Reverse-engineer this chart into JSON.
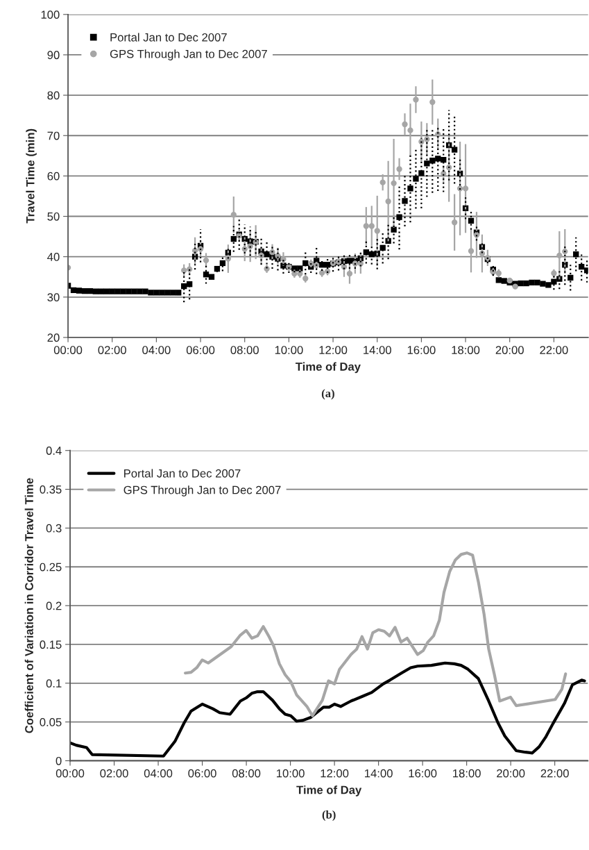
{
  "chart_data": [
    {
      "type": "scatter",
      "xlabel": "Time of Day",
      "ylabel": "Travel Time (min)",
      "annotations": [
        "(a)"
      ],
      "xlim": [
        0,
        23.55
      ],
      "ylim": [
        20,
        100
      ],
      "xticks": [
        {
          "value": 0,
          "label": "00:00"
        },
        {
          "value": 2,
          "label": "02:00"
        },
        {
          "value": 4,
          "label": "04:00"
        },
        {
          "value": 6,
          "label": "06:00"
        },
        {
          "value": 8,
          "label": "08:00"
        },
        {
          "value": 10,
          "label": "10:00"
        },
        {
          "value": 12,
          "label": "12:00"
        },
        {
          "value": 14,
          "label": "14:00"
        },
        {
          "value": 16,
          "label": "16:00"
        },
        {
          "value": 18,
          "label": "18:00"
        },
        {
          "value": 20,
          "label": "20:00"
        },
        {
          "value": 22,
          "label": "22:00"
        }
      ],
      "yticks": [
        20,
        30,
        40,
        50,
        60,
        70,
        80,
        90,
        100
      ],
      "grid": "y",
      "legend": "top left",
      "series": [
        {
          "name": "Portal Jan to Dec 2007",
          "color": "#000000",
          "marker": "square",
          "line_style": "dotted",
          "x": [
            0,
            0.25,
            0.5,
            0.75,
            1,
            1.25,
            1.5,
            1.75,
            2,
            2.25,
            2.5,
            2.75,
            3,
            3.25,
            3.5,
            3.75,
            4,
            4.25,
            4.5,
            4.75,
            5,
            5.25,
            5.5,
            5.75,
            6,
            6.25,
            6.5,
            6.75,
            7,
            7.25,
            7.5,
            7.75,
            8,
            8.25,
            8.5,
            8.75,
            9,
            9.25,
            9.5,
            9.75,
            10,
            10.25,
            10.5,
            10.75,
            11,
            11.25,
            11.5,
            11.75,
            12,
            12.25,
            12.5,
            12.75,
            13,
            13.25,
            13.5,
            13.75,
            14,
            14.25,
            14.5,
            14.75,
            15,
            15.25,
            15.5,
            15.75,
            16,
            16.25,
            16.5,
            16.75,
            17,
            17.25,
            17.5,
            17.75,
            18,
            18.25,
            18.5,
            18.75,
            19,
            19.25,
            19.5,
            19.75,
            20,
            20.25,
            20.5,
            20.75,
            21,
            21.25,
            21.5,
            21.75,
            22,
            22.25,
            22.5,
            22.75,
            23,
            23.25,
            23.5
          ],
          "values": [
            32.8,
            31.7,
            31.6,
            31.5,
            31.5,
            31.4,
            31.4,
            31.4,
            31.4,
            31.4,
            31.4,
            31.4,
            31.4,
            31.4,
            31.4,
            31.1,
            31.1,
            31.1,
            31.1,
            31.1,
            31.1,
            32.7,
            33.2,
            40,
            42.7,
            35.6,
            35,
            37,
            38.4,
            41,
            44.4,
            45.5,
            44.4,
            43.8,
            43.7,
            41.3,
            40.6,
            40,
            39.5,
            37.8,
            37.5,
            37.1,
            37.1,
            38.4,
            37.5,
            39,
            38,
            38,
            38.3,
            38.6,
            38.9,
            39,
            39,
            39.6,
            41.1,
            40.6,
            40.8,
            42.2,
            43.9,
            46.7,
            49.8,
            53.8,
            56.9,
            59.3,
            60.7,
            63.1,
            63.8,
            64.3,
            64,
            67.6,
            66.5,
            60.6,
            52,
            48.9,
            46,
            42.4,
            39.4,
            36.8,
            34.2,
            34,
            33.6,
            33.3,
            33.4,
            33.4,
            33.6,
            33.6,
            33.3,
            33,
            33.8,
            34.5,
            38,
            34.8,
            40.6,
            37.5,
            36.6
          ],
          "errors": [
            null,
            null,
            null,
            null,
            null,
            null,
            null,
            null,
            null,
            null,
            null,
            null,
            null,
            null,
            null,
            null,
            null,
            null,
            null,
            null,
            null,
            4,
            3.8,
            3.2,
            4.1,
            2.3,
            0.5,
            0.8,
            2,
            1.5,
            3.2,
            3.8,
            3.6,
            3.6,
            3,
            3.3,
            3.5,
            3,
            2.9,
            2,
            1.5,
            1,
            1,
            2.8,
            1.5,
            3.3,
            1.5,
            2,
            2,
            2,
            2,
            2,
            2,
            2,
            2.8,
            2.5,
            3.9,
            3.9,
            4.5,
            3.4,
            8,
            6.3,
            8.4,
            7.4,
            8.7,
            8.3,
            8,
            8,
            8,
            8.7,
            8.4,
            4,
            2.7,
            2.2,
            2,
            1.5,
            1,
            1.5,
            null,
            null,
            null,
            null,
            null,
            null,
            null,
            null,
            null,
            null,
            2,
            2.5,
            5,
            3.2,
            4.2,
            3.4,
            3
          ]
        },
        {
          "name": "GPS Through Jan to Dec 2007",
          "color": "#a6a6a6",
          "marker": "circle",
          "line_style": "solid",
          "x": [
            0,
            5.25,
            5.5,
            5.75,
            6,
            6.25,
            7.25,
            7.5,
            7.75,
            8,
            8.25,
            8.5,
            8.75,
            9,
            9.25,
            9.5,
            9.75,
            10,
            10.25,
            10.5,
            10.75,
            11,
            11.25,
            11.5,
            11.75,
            12,
            12.25,
            12.5,
            12.75,
            13,
            13.25,
            13.5,
            13.75,
            14,
            14.25,
            14.5,
            14.75,
            15,
            15.25,
            15.5,
            15.75,
            16,
            16.25,
            16.5,
            16.75,
            17,
            17.25,
            17.5,
            17.75,
            18,
            18.25,
            18.5,
            18.75,
            19,
            19.25,
            19.5,
            20,
            20.25,
            22,
            22.25,
            22.5
          ],
          "values": [
            37.3,
            36.6,
            36.9,
            41.5,
            41.9,
            39.1,
            39.5,
            50.4,
            45.2,
            41.9,
            42.6,
            43.6,
            40.3,
            37,
            41.1,
            40.2,
            39.4,
            37.5,
            35.8,
            35.8,
            34.6,
            38.3,
            37.9,
            36,
            36.4,
            38.4,
            38.7,
            37.5,
            35.8,
            38.3,
            38.3,
            47.6,
            47.6,
            46.4,
            58.4,
            53.7,
            58.2,
            61.7,
            72.8,
            71.3,
            78.9,
            68.5,
            69.1,
            78.3,
            70.3,
            60.6,
            62.1,
            48.5,
            56.9,
            56.9,
            41.4,
            45.4,
            40.8,
            39.7,
            36.2,
            35.9,
            34.1,
            32.6,
            35.9,
            40.3,
            41.3
          ],
          "errors": [
            null,
            1.5,
            1.5,
            3.3,
            2,
            1.8,
            3.5,
            4.5,
            1.5,
            3,
            3.9,
            4.2,
            2,
            1,
            2,
            2,
            1.7,
            1,
            1,
            1,
            1,
            1,
            1,
            1,
            1,
            1,
            1,
            2.5,
            2.5,
            2.5,
            2.5,
            4.7,
            5,
            8.7,
            2,
            10,
            11,
            2.7,
            2.7,
            6.6,
            3.3,
            5,
            4,
            5.6,
            3.9,
            2,
            8.5,
            7,
            11.6,
            11,
            5.3,
            5.7,
            4.7,
            2,
            1,
            1,
            null,
            null,
            1,
            6,
            5.5
          ]
        }
      ]
    },
    {
      "type": "line",
      "xlabel": "Time of Day",
      "ylabel": "Coefficient of Variation in Corridor Travel Time",
      "annotations": [
        "(b)"
      ],
      "xlim": [
        0,
        23.5
      ],
      "ylim": [
        0,
        0.4
      ],
      "xticks": [
        {
          "value": 0,
          "label": "00:00"
        },
        {
          "value": 2,
          "label": "02:00"
        },
        {
          "value": 4,
          "label": "04:00"
        },
        {
          "value": 6,
          "label": "06:00"
        },
        {
          "value": 8,
          "label": "08:00"
        },
        {
          "value": 10,
          "label": "10:00"
        },
        {
          "value": 12,
          "label": "12:00"
        },
        {
          "value": 14,
          "label": "14:00"
        },
        {
          "value": 16,
          "label": "16:00"
        },
        {
          "value": 18,
          "label": "18:00"
        },
        {
          "value": 20,
          "label": "20:00"
        },
        {
          "value": 22,
          "label": "22:00"
        }
      ],
      "yticks": [
        0,
        0.05,
        0.1,
        0.15,
        0.2,
        0.25,
        0.3,
        0.35,
        0.4
      ],
      "grid": "y",
      "legend": "top left",
      "series": [
        {
          "name": "Portal Jan to Dec 2007",
          "color": "#000000",
          "x": [
            0,
            0.28,
            0.75,
            1.0,
            4.24,
            4.76,
            5.18,
            5.49,
            6.0,
            6.48,
            6.79,
            7.26,
            7.73,
            7.99,
            8.25,
            8.51,
            8.77,
            9.19,
            9.5,
            9.76,
            10.02,
            10.28,
            10.56,
            10.93,
            11.5,
            11.76,
            12.0,
            12.28,
            12.75,
            13.27,
            13.69,
            14.21,
            14.52,
            15.04,
            15.46,
            15.77,
            16.4,
            16.81,
            17.02,
            17.44,
            17.75,
            18.06,
            18.53,
            19.0,
            19.42,
            19.73,
            20.25,
            20.67,
            20.98,
            21.29,
            21.6,
            21.92,
            22.44,
            22.8,
            23.22,
            23.35
          ],
          "values": [
            0.023,
            0.02,
            0.017,
            0.008,
            0.006,
            0.025,
            0.049,
            0.064,
            0.073,
            0.067,
            0.062,
            0.06,
            0.077,
            0.081,
            0.087,
            0.089,
            0.089,
            0.078,
            0.067,
            0.06,
            0.058,
            0.051,
            0.052,
            0.056,
            0.069,
            0.069,
            0.073,
            0.07,
            0.077,
            0.083,
            0.088,
            0.099,
            0.104,
            0.113,
            0.12,
            0.122,
            0.123,
            0.125,
            0.126,
            0.125,
            0.123,
            0.118,
            0.106,
            0.077,
            0.049,
            0.032,
            0.013,
            0.011,
            0.01,
            0.018,
            0.031,
            0.048,
            0.074,
            0.098,
            0.104,
            0.103
          ]
        },
        {
          "name": "GPS Through Jan to Dec 2007",
          "color": "#a6a6a6",
          "x": [
            5.23,
            5.49,
            5.75,
            6.0,
            6.27,
            7.31,
            7.73,
            7.99,
            8.25,
            8.51,
            8.77,
            9.03,
            9.24,
            9.5,
            9.76,
            10.02,
            10.28,
            10.75,
            11.0,
            11.45,
            11.73,
            12.0,
            12.23,
            12.75,
            13.01,
            13.25,
            13.5,
            13.74,
            14.0,
            14.26,
            14.5,
            14.75,
            15.02,
            15.3,
            15.77,
            16.03,
            16.24,
            16.5,
            16.76,
            16.97,
            17.23,
            17.49,
            17.75,
            18.01,
            18.27,
            18.53,
            18.79,
            19.0,
            19.26,
            19.5,
            19.99,
            20.25,
            22.02,
            22.32,
            22.49
          ],
          "values": [
            0.113,
            0.114,
            0.12,
            0.13,
            0.126,
            0.147,
            0.162,
            0.168,
            0.158,
            0.161,
            0.173,
            0.16,
            0.148,
            0.125,
            0.111,
            0.102,
            0.085,
            0.07,
            0.058,
            0.078,
            0.103,
            0.099,
            0.118,
            0.137,
            0.144,
            0.16,
            0.144,
            0.165,
            0.169,
            0.167,
            0.161,
            0.172,
            0.153,
            0.158,
            0.137,
            0.142,
            0.153,
            0.161,
            0.181,
            0.217,
            0.244,
            0.259,
            0.266,
            0.268,
            0.265,
            0.231,
            0.189,
            0.144,
            0.111,
            0.077,
            0.082,
            0.071,
            0.079,
            0.092,
            0.112
          ]
        }
      ]
    }
  ]
}
